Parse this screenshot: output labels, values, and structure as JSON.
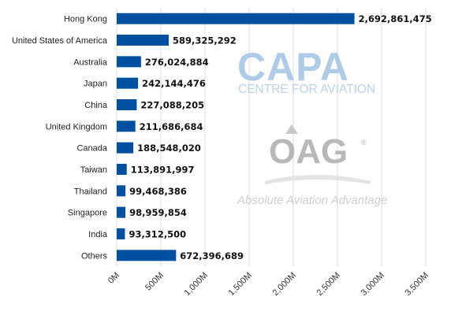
{
  "chart_data": {
    "type": "bar",
    "orientation": "horizontal",
    "categories": [
      "Hong Kong",
      "United States of America",
      "Australia",
      "Japan",
      "China",
      "United Kingdom",
      "Canada",
      "Taiwan",
      "Thailand",
      "Singapore",
      "India",
      "Others"
    ],
    "values": [
      2692861475,
      589325292,
      276024884,
      242144476,
      227088205,
      211686684,
      188548020,
      113891997,
      99468386,
      98959854,
      93312500,
      672396689
    ],
    "value_labels": [
      "2,692,861,475",
      "589,325,292",
      "276,024,884",
      "242,144,476",
      "227,088,205",
      "211,686,684",
      "188,548,020",
      "113,891,997",
      "99,468,386",
      "98,959,854",
      "93,312,500",
      "672,396,689"
    ],
    "xlim": [
      0,
      3500000000
    ],
    "x_ticks": [
      0,
      500000000,
      1000000000,
      1500000000,
      2000000000,
      2500000000,
      3000000000,
      3500000000
    ],
    "x_tick_labels": [
      "0M",
      "500M",
      "1,000M",
      "1,500M",
      "2,000M",
      "2,500M",
      "3,000M",
      "3,500M"
    ],
    "grid": true,
    "bar_color": "#0050a0",
    "title": "",
    "xlabel": "",
    "ylabel": ""
  },
  "watermarks": {
    "capa_logo_text": "CAPA",
    "capa_subtitle": "CENTRE FOR AVIATION",
    "oag_logo_text": "OAG",
    "oag_registered": "®",
    "oag_tagline": "Absolute Aviation Advantage"
  }
}
